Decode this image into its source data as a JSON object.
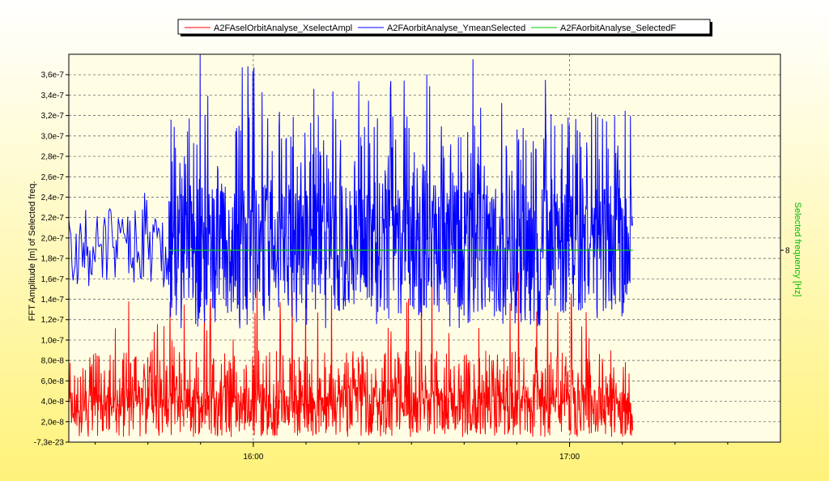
{
  "chart_data": {
    "type": "line",
    "title": "",
    "legend": {
      "placement": "top-center",
      "entries": [
        {
          "label": "A2FAselOrbitAnalyse_XselectAmpl",
          "color": "#ff0000"
        },
        {
          "label": "A2FAorbitAnalyse_YmeanSelected",
          "color": "#0000ff"
        },
        {
          "label": "A2FAorbitAnalyse_SelectedF",
          "color": "#00cc00"
        }
      ]
    },
    "ylabel": "FFT Amplitude [m] of Selected freq.",
    "y2label": "Selected frequency [Hz]",
    "xlabel": "",
    "ylim": [
      -7.3e-23,
      3.8e-07
    ],
    "yticks": [
      {
        "value": -7.3e-23,
        "label": "-7,3e-23"
      },
      {
        "value": 2e-08,
        "label": "2,0e-8"
      },
      {
        "value": 4e-08,
        "label": "4,0e-8"
      },
      {
        "value": 6e-08,
        "label": "6,0e-8"
      },
      {
        "value": 8e-08,
        "label": "8,0e-8"
      },
      {
        "value": 1e-07,
        "label": "1,0e-7"
      },
      {
        "value": 1.2e-07,
        "label": "1,2e-7"
      },
      {
        "value": 1.4e-07,
        "label": "1,4e-7"
      },
      {
        "value": 1.6e-07,
        "label": "1,6e-7"
      },
      {
        "value": 1.8e-07,
        "label": "1,8e-7"
      },
      {
        "value": 2e-07,
        "label": "2,0e-7"
      },
      {
        "value": 2.2e-07,
        "label": "2,2e-7"
      },
      {
        "value": 2.4e-07,
        "label": "2,4e-7"
      },
      {
        "value": 2.6e-07,
        "label": "2,6e-7"
      },
      {
        "value": 2.8e-07,
        "label": "2,8e-7"
      },
      {
        "value": 3e-07,
        "label": "3,0e-7"
      },
      {
        "value": 3.2e-07,
        "label": "3,2e-7"
      },
      {
        "value": 3.4e-07,
        "label": "3,4e-7"
      },
      {
        "value": 3.6e-07,
        "label": "3,6e-7"
      }
    ],
    "y2ticks": [
      {
        "value": 8,
        "label": "8"
      }
    ],
    "xlim": [
      "15:25",
      "17:40"
    ],
    "xticks": [
      {
        "value": "16:00",
        "label": "16:00"
      },
      {
        "value": "17:00",
        "label": "17:00"
      }
    ],
    "grid": true,
    "series": [
      {
        "name": "A2FAselOrbitAnalyse_XselectAmpl",
        "color": "#ff0000",
        "x_range": [
          "15:25",
          "17:12"
        ],
        "baseline": 3e-08,
        "typical_max": 9e-08,
        "peak_max": 1.7e-07,
        "min": 5e-09
      },
      {
        "name": "A2FAorbitAnalyse_YmeanSelected",
        "color": "#0000ff",
        "segments": [
          {
            "x_range": [
              "15:25",
              "15:44"
            ],
            "mean": 1.9e-07,
            "min": 1.5e-07,
            "max": 2.45e-07
          },
          {
            "x_range": [
              "15:44",
              "17:12"
            ],
            "mean": 1.9e-07,
            "min": 1.1e-07,
            "max": 3.8e-07
          }
        ]
      },
      {
        "name": "A2FAorbitAnalyse_SelectedF",
        "color": "#00cc00",
        "axis": "right",
        "x_range": [
          "15:44",
          "17:12"
        ],
        "value": 8
      }
    ]
  }
}
